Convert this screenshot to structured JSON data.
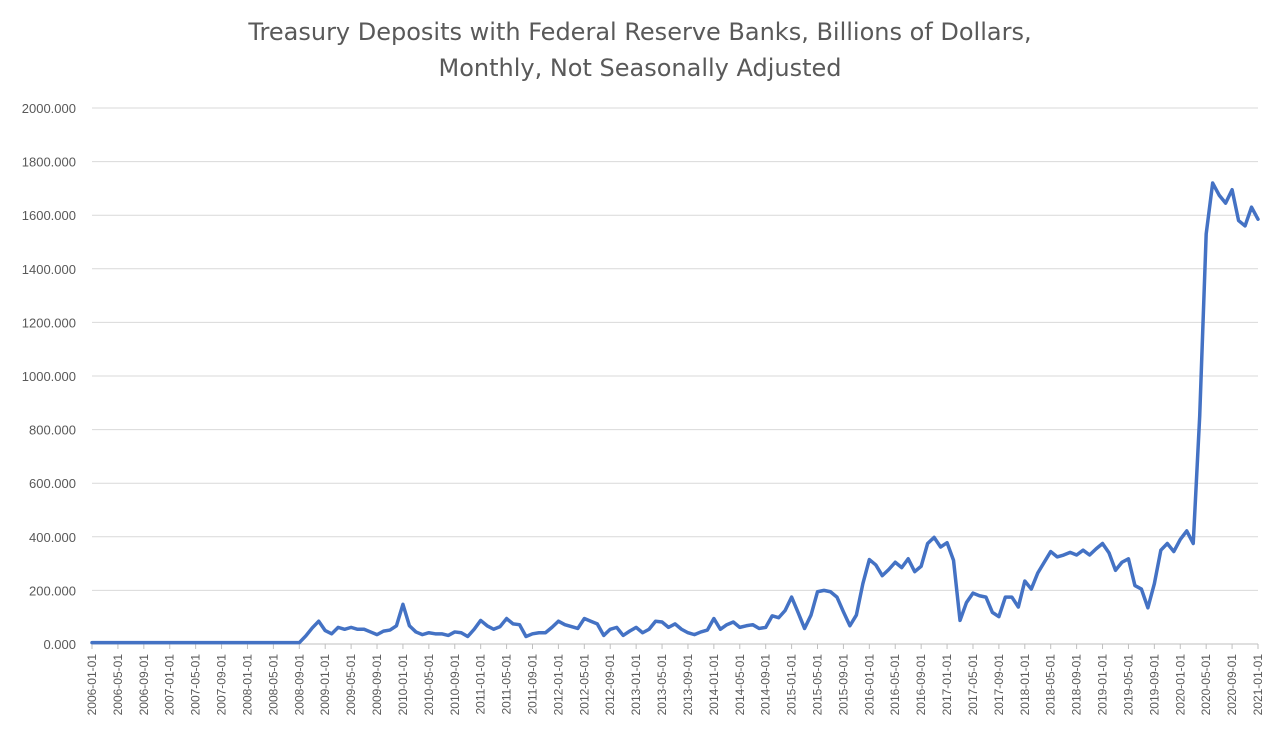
{
  "chart_data": {
    "type": "line",
    "title": "Treasury Deposits with Federal Reserve Banks, Billions of Dollars, Monthly, Not Seasonally Adjusted",
    "xlabel": "",
    "ylabel": "",
    "ylim": [
      0,
      2000
    ],
    "grid": true,
    "legend": "none",
    "series_color": "#4472C4",
    "y_tick_labels": [
      "0.000",
      "200.000",
      "400.000",
      "600.000",
      "800.000",
      "1000.000",
      "1200.000",
      "1400.000",
      "1600.000",
      "1800.000",
      "2000.000"
    ],
    "x_tick_labels": [
      "2006-01-01",
      "2006-05-01",
      "2006-09-01",
      "2007-01-01",
      "2007-05-01",
      "2007-09-01",
      "2008-01-01",
      "2008-05-01",
      "2008-09-01",
      "2009-01-01",
      "2009-05-01",
      "2009-09-01",
      "2010-01-01",
      "2010-05-01",
      "2010-09-01",
      "2011-01-01",
      "2011-05-01",
      "2011-09-01",
      "2012-01-01",
      "2012-05-01",
      "2012-09-01",
      "2013-01-01",
      "2013-05-01",
      "2013-09-01",
      "2014-01-01",
      "2014-05-01",
      "2014-09-01",
      "2015-01-01",
      "2015-05-01",
      "2015-09-01",
      "2016-01-01",
      "2016-05-01",
      "2016-09-01",
      "2017-01-01",
      "2017-05-01",
      "2017-09-01",
      "2018-01-01",
      "2018-05-01",
      "2018-09-01",
      "2019-01-01",
      "2019-05-01",
      "2019-09-01",
      "2020-01-01",
      "2020-05-01",
      "2020-09-01",
      "2021-01-01"
    ],
    "x_start": "2006-01",
    "series": [
      {
        "values": [
          5,
          5,
          5,
          5,
          5,
          5,
          5,
          5,
          5,
          5,
          5,
          5,
          5,
          5,
          5,
          5,
          5,
          5,
          5,
          5,
          5,
          5,
          5,
          5,
          5,
          5,
          5,
          5,
          5,
          5,
          5,
          5,
          5,
          30,
          60,
          85,
          50,
          38,
          62,
          55,
          62,
          55,
          55,
          45,
          35,
          48,
          52,
          68,
          148,
          68,
          45,
          35,
          42,
          38,
          38,
          32,
          45,
          42,
          28,
          55,
          88,
          68,
          55,
          65,
          95,
          75,
          72,
          28,
          38,
          42,
          42,
          62,
          85,
          72,
          65,
          58,
          95,
          85,
          75,
          32,
          55,
          62,
          32,
          48,
          62,
          42,
          55,
          85,
          82,
          62,
          75,
          55,
          42,
          35,
          45,
          52,
          95,
          55,
          72,
          82,
          62,
          68,
          72,
          58,
          62,
          105,
          98,
          125,
          175,
          118,
          58,
          108,
          195,
          200,
          195,
          175,
          120,
          68,
          108,
          225,
          315,
          295,
          255,
          278,
          305,
          285,
          318,
          270,
          290,
          375,
          398,
          362,
          378,
          312,
          88,
          155,
          190,
          180,
          175,
          118,
          102,
          175,
          175,
          138,
          235,
          205,
          265,
          305,
          345,
          325,
          332,
          342,
          332,
          350,
          332,
          355,
          375,
          340,
          275,
          305,
          318,
          218,
          205,
          135,
          225,
          350,
          375,
          345,
          390,
          422,
          375,
          850,
          1530,
          1720,
          1675,
          1645,
          1695,
          1580,
          1560,
          1630,
          1585
        ]
      }
    ]
  }
}
